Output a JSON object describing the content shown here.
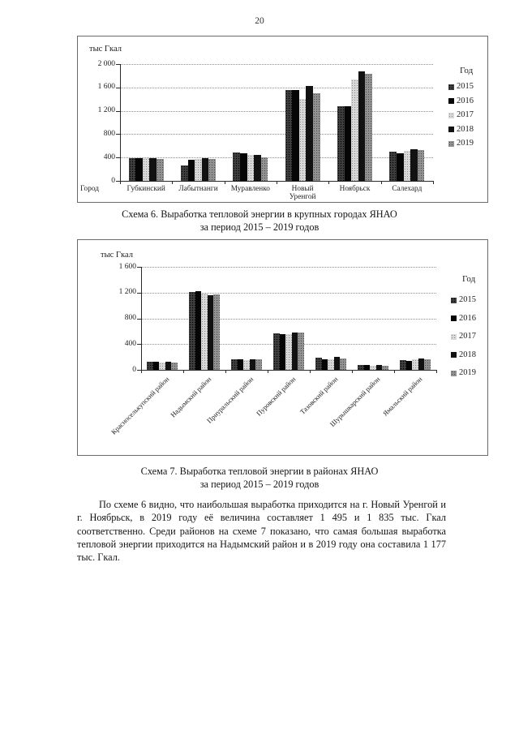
{
  "page_number": "20",
  "captions": [
    {
      "line1": "Схема 6. Выработка тепловой энергии в крупных городах ЯНАО",
      "line2": "за период 2015 – 2019 годов"
    },
    {
      "line1": "Схема 7. Выработка тепловой энергии в районах ЯНАО",
      "line2": "за период 2015 – 2019 годов"
    }
  ],
  "paragraph": "По схеме 6 видно, что наибольшая выработка приходится на г. Новый Уренгой и г. Ноябрьск, в 2019 году её величина составляет 1 495 и 1 835 тыс. Гкал соответственно. Среди районов на схеме 7 показано, что самая большая выработка тепловой энергии приходится на Надымский район и в 2019 году она составила 1 177 тыс. Гкал.",
  "chart_data": [
    {
      "type": "bar",
      "title": "Схема 6. Выработка тепловой энергии в крупных городах ЯНАО за период 2015 – 2019 годов",
      "ylabel": "тыс Гкал",
      "xlabel": "Город",
      "legend_title": "Год",
      "legend_position": "right",
      "grid": true,
      "ylim": [
        0,
        2000
      ],
      "yticks": [
        0,
        400,
        800,
        1200,
        1600,
        2000
      ],
      "ytick_labels": [
        "0",
        "400",
        "800",
        "1 200",
        "1 600",
        "2 000"
      ],
      "categories": [
        "Губкинский",
        "Лабытнанги",
        "Муравленко",
        "Новый Уренгой",
        "Ноябрьск",
        "Салехард"
      ],
      "series": [
        {
          "name": "2015",
          "values": [
            385,
            265,
            490,
            1550,
            1280,
            500
          ]
        },
        {
          "name": "2016",
          "values": [
            385,
            360,
            470,
            1550,
            1280,
            470
          ]
        },
        {
          "name": "2017",
          "values": [
            390,
            370,
            450,
            1400,
            1740,
            510
          ]
        },
        {
          "name": "2018",
          "values": [
            395,
            385,
            445,
            1620,
            1870,
            545
          ]
        },
        {
          "name": "2019",
          "values": [
            380,
            370,
            405,
            1495,
            1835,
            530
          ]
        }
      ]
    },
    {
      "type": "bar",
      "title": "Схема 7. Выработка тепловой энергии в районах ЯНАО за период 2015 – 2019 годов",
      "ylabel": "тыс Гкал",
      "xlabel": "",
      "legend_title": "Год",
      "legend_position": "right",
      "grid": true,
      "ylim": [
        0,
        1600
      ],
      "yticks": [
        0,
        400,
        800,
        1200,
        1600
      ],
      "ytick_labels": [
        "0",
        "400",
        "800",
        "1 200",
        "1 600"
      ],
      "categories": [
        "Красноселькупский район",
        "Надымский район",
        "Приуральский район",
        "Пуровский район",
        "Тазовский район",
        "Шурышкарский район",
        "Ямальский район"
      ],
      "series": [
        {
          "name": "2015",
          "values": [
            120,
            1210,
            160,
            570,
            190,
            70,
            150
          ]
        },
        {
          "name": "2016",
          "values": [
            120,
            1225,
            158,
            560,
            170,
            70,
            140
          ]
        },
        {
          "name": "2017",
          "values": [
            115,
            1190,
            152,
            550,
            170,
            65,
            160
          ]
        },
        {
          "name": "2018",
          "values": [
            120,
            1165,
            165,
            585,
            205,
            75,
            175
          ]
        },
        {
          "name": "2019",
          "values": [
            112,
            1177,
            158,
            575,
            180,
            65,
            165
          ]
        }
      ]
    }
  ]
}
